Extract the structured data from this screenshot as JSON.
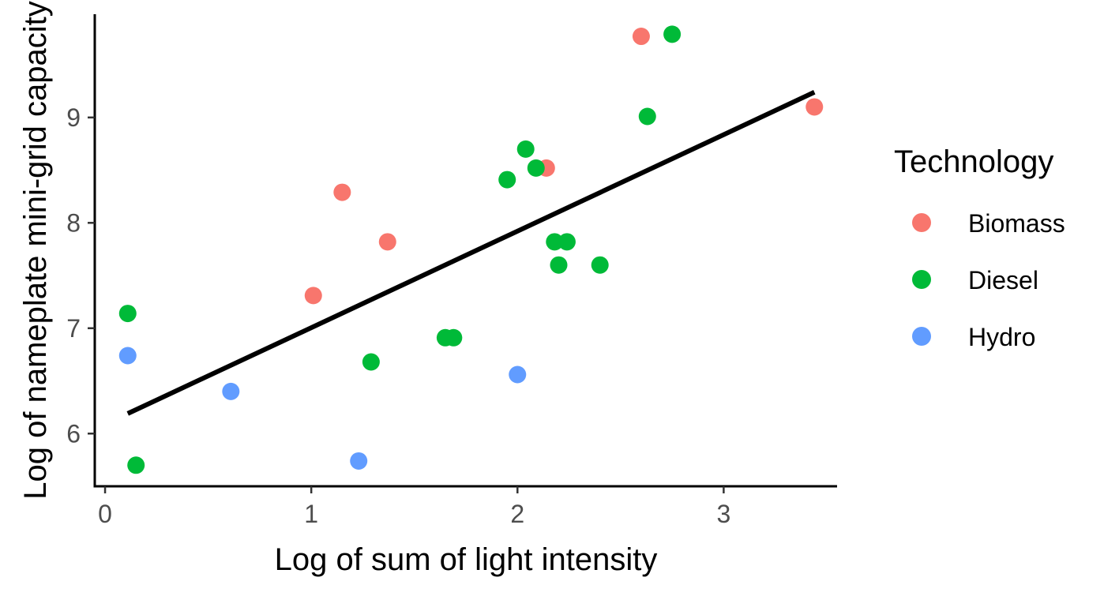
{
  "chart_data": {
    "type": "scatter",
    "title": "",
    "xlabel": "Log of sum of light intensity",
    "ylabel": "Log of nameplate mini-grid capacity",
    "xlim": [
      -0.05,
      3.55
    ],
    "ylim": [
      5.5,
      9.98
    ],
    "x_ticks": [
      0,
      1,
      2,
      3
    ],
    "y_ticks": [
      6,
      7,
      8,
      9
    ],
    "x_tick_labels": [
      "0",
      "1",
      "2",
      "3"
    ],
    "y_tick_labels": [
      "6",
      "7",
      "8",
      "9"
    ],
    "grid": false,
    "legend": {
      "title": "Technology",
      "position": "right"
    },
    "series": [
      {
        "name": "Biomass",
        "color": "#F8766D",
        "points": [
          {
            "x": 1.01,
            "y": 7.31
          },
          {
            "x": 1.15,
            "y": 8.29
          },
          {
            "x": 1.37,
            "y": 7.82
          },
          {
            "x": 2.14,
            "y": 8.52
          },
          {
            "x": 2.6,
            "y": 9.77
          },
          {
            "x": 3.44,
            "y": 9.1
          }
        ]
      },
      {
        "name": "Diesel",
        "color": "#00BA38",
        "points": [
          {
            "x": 0.11,
            "y": 7.14
          },
          {
            "x": 0.15,
            "y": 5.7
          },
          {
            "x": 1.29,
            "y": 6.68
          },
          {
            "x": 1.65,
            "y": 6.91
          },
          {
            "x": 1.69,
            "y": 6.91
          },
          {
            "x": 1.95,
            "y": 8.41
          },
          {
            "x": 2.04,
            "y": 8.7
          },
          {
            "x": 2.09,
            "y": 8.52
          },
          {
            "x": 2.18,
            "y": 7.82
          },
          {
            "x": 2.2,
            "y": 7.6
          },
          {
            "x": 2.24,
            "y": 7.82
          },
          {
            "x": 2.4,
            "y": 7.6
          },
          {
            "x": 2.63,
            "y": 9.01
          },
          {
            "x": 2.75,
            "y": 9.79
          }
        ]
      },
      {
        "name": "Hydro",
        "color": "#619CFF",
        "points": [
          {
            "x": 0.11,
            "y": 6.74
          },
          {
            "x": 0.61,
            "y": 6.4
          },
          {
            "x": 1.23,
            "y": 5.74
          },
          {
            "x": 2.0,
            "y": 6.56
          }
        ]
      }
    ],
    "fit_line": {
      "color": "#000000",
      "x": [
        0.11,
        3.44
      ],
      "y": [
        6.19,
        9.24
      ]
    }
  }
}
